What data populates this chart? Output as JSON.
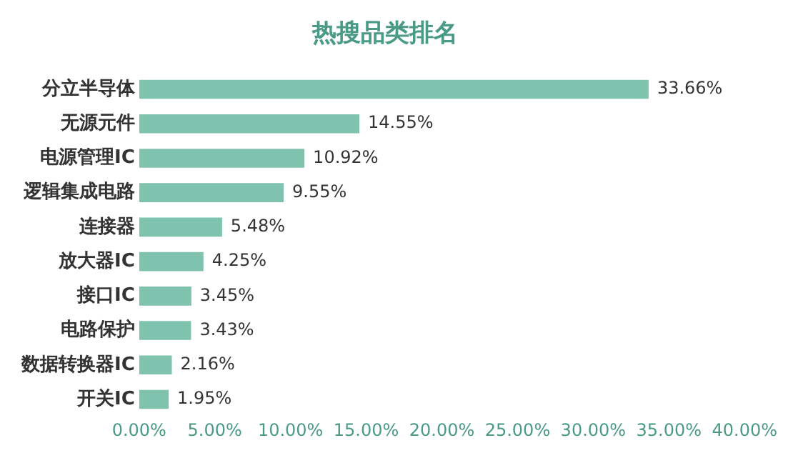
{
  "chart_data": {
    "type": "bar",
    "orientation": "horizontal",
    "title": "热搜品类排名",
    "categories": [
      "分立半导体",
      "无源元件",
      "电源管理IC",
      "逻辑集成电路",
      "连接器",
      "放大器IC",
      "接口IC",
      "电路保护",
      "数据转换器IC",
      "开关IC"
    ],
    "values": [
      33.66,
      14.55,
      10.92,
      9.55,
      5.48,
      4.25,
      3.45,
      3.43,
      2.16,
      1.95
    ],
    "value_labels": [
      "33.66%",
      "14.55%",
      "10.92%",
      "9.55%",
      "5.48%",
      "4.25%",
      "3.45%",
      "3.43%",
      "2.16%",
      "1.95%"
    ],
    "color": "#7fc3ae",
    "xlim": [
      0,
      40
    ],
    "xticks": [
      {
        "value": 0,
        "label": "0.00%"
      },
      {
        "value": 5,
        "label": "5.00%"
      },
      {
        "value": 10,
        "label": "10.00%"
      },
      {
        "value": 15,
        "label": "15.00%"
      },
      {
        "value": 20,
        "label": "20.00%"
      },
      {
        "value": 25,
        "label": "25.00%"
      },
      {
        "value": 30,
        "label": "30.00%"
      },
      {
        "value": 35,
        "label": "35.00%"
      },
      {
        "value": 40,
        "label": "40.00%"
      }
    ],
    "grid": false,
    "legend": false
  }
}
